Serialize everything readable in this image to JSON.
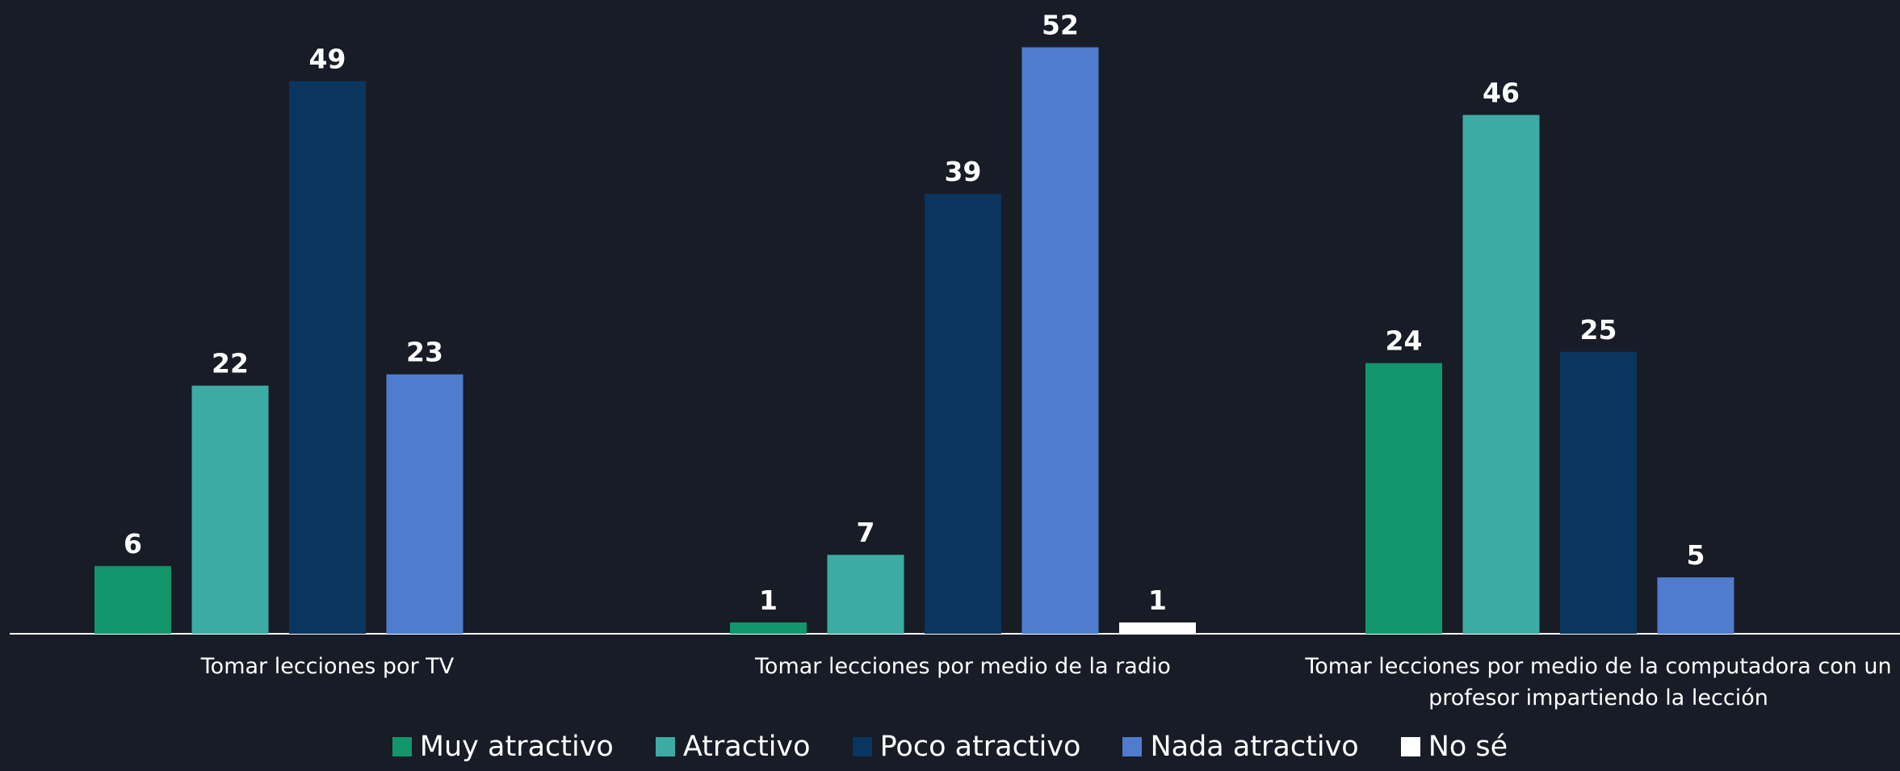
{
  "chart_data": {
    "type": "bar",
    "categories": [
      "Tomar lecciones por TV",
      "Tomar lecciones por medio de la radio",
      "Tomar lecciones por medio de la computadora con un profesor impartiendo la lección"
    ],
    "series": [
      {
        "name": "Muy atractivo",
        "color": "#12966b",
        "values": [
          6,
          1,
          24
        ]
      },
      {
        "name": "Atractivo",
        "color": "#3caca3",
        "values": [
          22,
          7,
          46
        ]
      },
      {
        "name": "Poco atractivo",
        "color": "#0a355e",
        "values": [
          49,
          39,
          25
        ]
      },
      {
        "name": "Nada atractivo",
        "color": "#4f7ccc",
        "values": [
          23,
          52,
          5
        ]
      },
      {
        "name": "No sé",
        "color": "#ffffff",
        "values": [
          null,
          1,
          null
        ]
      }
    ],
    "legend": "bottom"
  }
}
